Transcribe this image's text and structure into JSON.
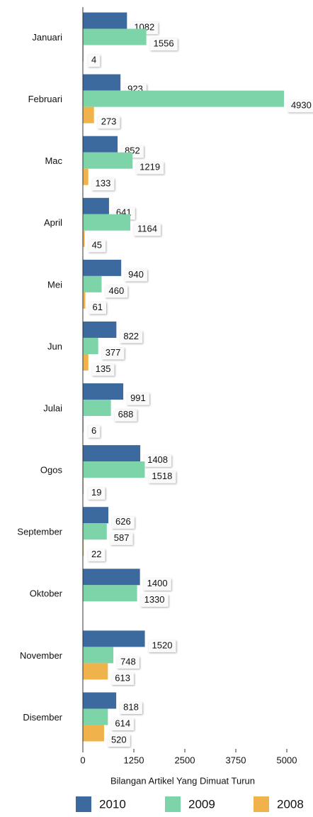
{
  "chart_data": {
    "type": "bar",
    "orientation": "horizontal",
    "categories": [
      "Januari",
      "Februari",
      "Mac",
      "April",
      "Mei",
      "Jun",
      "Julai",
      "Ogos",
      "September",
      "Oktober",
      "November",
      "Disember"
    ],
    "series": [
      {
        "name": "2010",
        "color": "#3d6a9e",
        "values": [
          1082,
          923,
          852,
          641,
          940,
          822,
          991,
          1408,
          626,
          1400,
          1520,
          818
        ]
      },
      {
        "name": "2009",
        "color": "#7dd4a8",
        "values": [
          1556,
          4930,
          1219,
          1164,
          460,
          377,
          688,
          1518,
          587,
          1330,
          748,
          614
        ]
      },
      {
        "name": "2008",
        "color": "#f0b24a",
        "values": [
          4,
          273,
          133,
          45,
          61,
          135,
          6,
          19,
          22,
          null,
          613,
          520
        ]
      }
    ],
    "xlabel": "Bilangan Artikel Yang Dimuat Turun",
    "xlim": [
      0,
      5000
    ],
    "xticks": [
      0,
      1250,
      2500,
      3750,
      5000
    ],
    "legend": "bottom"
  }
}
